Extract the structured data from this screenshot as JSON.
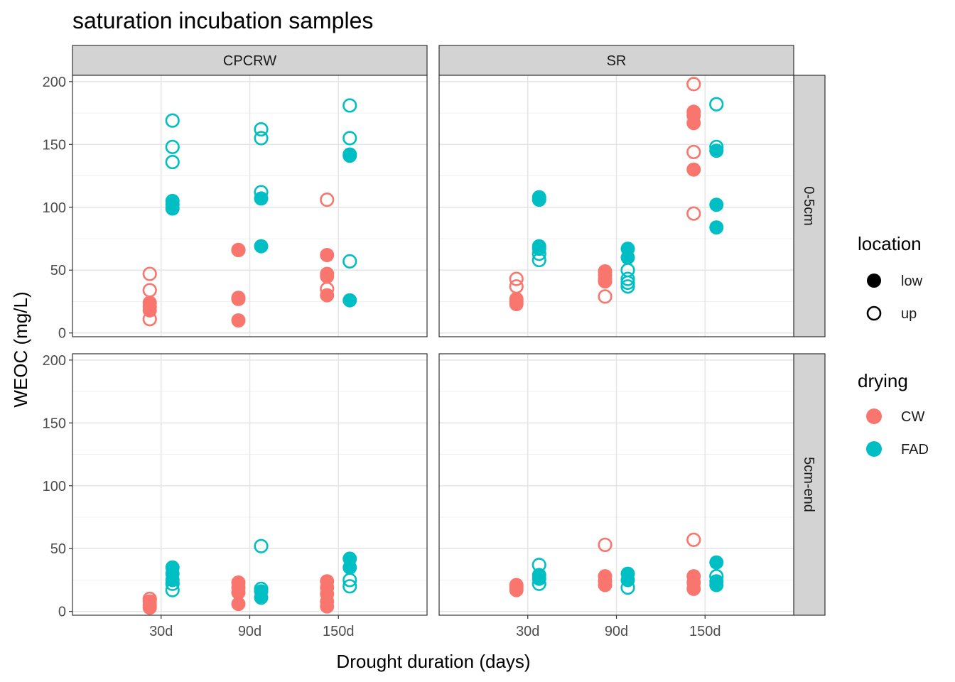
{
  "chart_data": {
    "type": "scatter",
    "title": "saturation incubation samples",
    "xlabel": "Drought duration (days)",
    "ylabel": "WEOC (mg/L)",
    "x_categories": [
      "30d",
      "90d",
      "150d"
    ],
    "ylim": [
      -3,
      205
    ],
    "y_ticks": [
      0,
      50,
      100,
      150,
      200
    ],
    "grid": true,
    "facet_cols": [
      "CPCRW",
      "SR"
    ],
    "facet_rows": [
      "0-5cm",
      "5cm-end"
    ],
    "colors": {
      "CW": "#F8766D",
      "FAD": "#00BFC4"
    },
    "legend": {
      "placement": "right",
      "location_title": "location",
      "location_items": [
        {
          "label": "low",
          "shape": "filled"
        },
        {
          "label": "up",
          "shape": "open"
        }
      ],
      "drying_title": "drying",
      "drying_items": [
        {
          "label": "CW",
          "color": "#F8766D"
        },
        {
          "label": "FAD",
          "color": "#00BFC4"
        }
      ]
    },
    "panels": [
      {
        "col": "CPCRW",
        "row": "0-5cm",
        "points": [
          {
            "x": "30d",
            "drying": "CW",
            "location": "up",
            "y": 47
          },
          {
            "x": "30d",
            "drying": "CW",
            "location": "up",
            "y": 34
          },
          {
            "x": "30d",
            "drying": "CW",
            "location": "up",
            "y": 11
          },
          {
            "x": "30d",
            "drying": "CW",
            "location": "low",
            "y": 24
          },
          {
            "x": "30d",
            "drying": "CW",
            "location": "low",
            "y": 21
          },
          {
            "x": "30d",
            "drying": "CW",
            "location": "low",
            "y": 18
          },
          {
            "x": "30d",
            "drying": "FAD",
            "location": "up",
            "y": 169
          },
          {
            "x": "30d",
            "drying": "FAD",
            "location": "up",
            "y": 148
          },
          {
            "x": "30d",
            "drying": "FAD",
            "location": "up",
            "y": 136
          },
          {
            "x": "30d",
            "drying": "FAD",
            "location": "low",
            "y": 105
          },
          {
            "x": "30d",
            "drying": "FAD",
            "location": "low",
            "y": 102
          },
          {
            "x": "30d",
            "drying": "FAD",
            "location": "low",
            "y": 99
          },
          {
            "x": "90d",
            "drying": "CW",
            "location": "up",
            "y": 66
          },
          {
            "x": "90d",
            "drying": "CW",
            "location": "low",
            "y": 66
          },
          {
            "x": "90d",
            "drying": "CW",
            "location": "low",
            "y": 28
          },
          {
            "x": "90d",
            "drying": "CW",
            "location": "low",
            "y": 27
          },
          {
            "x": "90d",
            "drying": "CW",
            "location": "low",
            "y": 10
          },
          {
            "x": "90d",
            "drying": "FAD",
            "location": "up",
            "y": 162
          },
          {
            "x": "90d",
            "drying": "FAD",
            "location": "up",
            "y": 155
          },
          {
            "x": "90d",
            "drying": "FAD",
            "location": "up",
            "y": 112
          },
          {
            "x": "90d",
            "drying": "FAD",
            "location": "low",
            "y": 107
          },
          {
            "x": "90d",
            "drying": "FAD",
            "location": "low",
            "y": 69
          },
          {
            "x": "150d",
            "drying": "CW",
            "location": "up",
            "y": 106
          },
          {
            "x": "150d",
            "drying": "CW",
            "location": "up",
            "y": 35
          },
          {
            "x": "150d",
            "drying": "CW",
            "location": "low",
            "y": 62
          },
          {
            "x": "150d",
            "drying": "CW",
            "location": "low",
            "y": 47
          },
          {
            "x": "150d",
            "drying": "CW",
            "location": "low",
            "y": 45
          },
          {
            "x": "150d",
            "drying": "CW",
            "location": "low",
            "y": 30
          },
          {
            "x": "150d",
            "drying": "FAD",
            "location": "up",
            "y": 181
          },
          {
            "x": "150d",
            "drying": "FAD",
            "location": "up",
            "y": 155
          },
          {
            "x": "150d",
            "drying": "FAD",
            "location": "up",
            "y": 57
          },
          {
            "x": "150d",
            "drying": "FAD",
            "location": "low",
            "y": 142
          },
          {
            "x": "150d",
            "drying": "FAD",
            "location": "low",
            "y": 141
          },
          {
            "x": "150d",
            "drying": "FAD",
            "location": "low",
            "y": 26
          }
        ]
      },
      {
        "col": "SR",
        "row": "0-5cm",
        "points": [
          {
            "x": "30d",
            "drying": "CW",
            "location": "up",
            "y": 43
          },
          {
            "x": "30d",
            "drying": "CW",
            "location": "up",
            "y": 37
          },
          {
            "x": "30d",
            "drying": "CW",
            "location": "low",
            "y": 27
          },
          {
            "x": "30d",
            "drying": "CW",
            "location": "low",
            "y": 25
          },
          {
            "x": "30d",
            "drying": "CW",
            "location": "low",
            "y": 23
          },
          {
            "x": "30d",
            "drying": "FAD",
            "location": "low",
            "y": 108
          },
          {
            "x": "30d",
            "drying": "FAD",
            "location": "low",
            "y": 106
          },
          {
            "x": "30d",
            "drying": "FAD",
            "location": "low",
            "y": 69
          },
          {
            "x": "30d",
            "drying": "FAD",
            "location": "low",
            "y": 67
          },
          {
            "x": "30d",
            "drying": "FAD",
            "location": "up",
            "y": 63
          },
          {
            "x": "30d",
            "drying": "FAD",
            "location": "up",
            "y": 58
          },
          {
            "x": "90d",
            "drying": "CW",
            "location": "low",
            "y": 49
          },
          {
            "x": "90d",
            "drying": "CW",
            "location": "low",
            "y": 46
          },
          {
            "x": "90d",
            "drying": "CW",
            "location": "low",
            "y": 43
          },
          {
            "x": "90d",
            "drying": "CW",
            "location": "low",
            "y": 41
          },
          {
            "x": "90d",
            "drying": "CW",
            "location": "up",
            "y": 29
          },
          {
            "x": "90d",
            "drying": "FAD",
            "location": "low",
            "y": 67
          },
          {
            "x": "90d",
            "drying": "FAD",
            "location": "low",
            "y": 60
          },
          {
            "x": "90d",
            "drying": "FAD",
            "location": "up",
            "y": 50
          },
          {
            "x": "90d",
            "drying": "FAD",
            "location": "up",
            "y": 43
          },
          {
            "x": "90d",
            "drying": "FAD",
            "location": "up",
            "y": 40
          },
          {
            "x": "90d",
            "drying": "FAD",
            "location": "up",
            "y": 37
          },
          {
            "x": "150d",
            "drying": "CW",
            "location": "up",
            "y": 198
          },
          {
            "x": "150d",
            "drying": "CW",
            "location": "up",
            "y": 144
          },
          {
            "x": "150d",
            "drying": "CW",
            "location": "up",
            "y": 95
          },
          {
            "x": "150d",
            "drying": "CW",
            "location": "low",
            "y": 176
          },
          {
            "x": "150d",
            "drying": "CW",
            "location": "low",
            "y": 173
          },
          {
            "x": "150d",
            "drying": "CW",
            "location": "low",
            "y": 167
          },
          {
            "x": "150d",
            "drying": "CW",
            "location": "low",
            "y": 130
          },
          {
            "x": "150d",
            "drying": "FAD",
            "location": "up",
            "y": 182
          },
          {
            "x": "150d",
            "drying": "FAD",
            "location": "up",
            "y": 148
          },
          {
            "x": "150d",
            "drying": "FAD",
            "location": "low",
            "y": 145
          },
          {
            "x": "150d",
            "drying": "FAD",
            "location": "low",
            "y": 102
          },
          {
            "x": "150d",
            "drying": "FAD",
            "location": "low",
            "y": 84
          }
        ]
      },
      {
        "col": "CPCRW",
        "row": "5cm-end",
        "points": [
          {
            "x": "30d",
            "drying": "CW",
            "location": "up",
            "y": 10
          },
          {
            "x": "30d",
            "drying": "CW",
            "location": "low",
            "y": 8
          },
          {
            "x": "30d",
            "drying": "CW",
            "location": "low",
            "y": 5
          },
          {
            "x": "30d",
            "drying": "CW",
            "location": "low",
            "y": 3
          },
          {
            "x": "30d",
            "drying": "FAD",
            "location": "low",
            "y": 35
          },
          {
            "x": "30d",
            "drying": "FAD",
            "location": "low",
            "y": 30
          },
          {
            "x": "30d",
            "drying": "FAD",
            "location": "low",
            "y": 25
          },
          {
            "x": "30d",
            "drying": "FAD",
            "location": "up",
            "y": 22
          },
          {
            "x": "30d",
            "drying": "FAD",
            "location": "up",
            "y": 17
          },
          {
            "x": "90d",
            "drying": "CW",
            "location": "low",
            "y": 23
          },
          {
            "x": "90d",
            "drying": "CW",
            "location": "low",
            "y": 19
          },
          {
            "x": "90d",
            "drying": "CW",
            "location": "low",
            "y": 15
          },
          {
            "x": "90d",
            "drying": "CW",
            "location": "low",
            "y": 6
          },
          {
            "x": "90d",
            "drying": "FAD",
            "location": "up",
            "y": 52
          },
          {
            "x": "90d",
            "drying": "FAD",
            "location": "up",
            "y": 18
          },
          {
            "x": "90d",
            "drying": "FAD",
            "location": "low",
            "y": 16
          },
          {
            "x": "90d",
            "drying": "FAD",
            "location": "low",
            "y": 11
          },
          {
            "x": "150d",
            "drying": "CW",
            "location": "low",
            "y": 24
          },
          {
            "x": "150d",
            "drying": "CW",
            "location": "low",
            "y": 19
          },
          {
            "x": "150d",
            "drying": "CW",
            "location": "low",
            "y": 14
          },
          {
            "x": "150d",
            "drying": "CW",
            "location": "low",
            "y": 8
          },
          {
            "x": "150d",
            "drying": "CW",
            "location": "low",
            "y": 4
          },
          {
            "x": "150d",
            "drying": "FAD",
            "location": "low",
            "y": 42
          },
          {
            "x": "150d",
            "drying": "FAD",
            "location": "low",
            "y": 35
          },
          {
            "x": "150d",
            "drying": "FAD",
            "location": "up",
            "y": 25
          },
          {
            "x": "150d",
            "drying": "FAD",
            "location": "up",
            "y": 20
          }
        ]
      },
      {
        "col": "SR",
        "row": "5cm-end",
        "points": [
          {
            "x": "30d",
            "drying": "CW",
            "location": "low",
            "y": 21
          },
          {
            "x": "30d",
            "drying": "CW",
            "location": "low",
            "y": 19
          },
          {
            "x": "30d",
            "drying": "CW",
            "location": "low",
            "y": 17
          },
          {
            "x": "30d",
            "drying": "FAD",
            "location": "up",
            "y": 37
          },
          {
            "x": "30d",
            "drying": "FAD",
            "location": "low",
            "y": 29
          },
          {
            "x": "30d",
            "drying": "FAD",
            "location": "low",
            "y": 26
          },
          {
            "x": "30d",
            "drying": "FAD",
            "location": "up",
            "y": 22
          },
          {
            "x": "90d",
            "drying": "CW",
            "location": "up",
            "y": 53
          },
          {
            "x": "90d",
            "drying": "CW",
            "location": "low",
            "y": 28
          },
          {
            "x": "90d",
            "drying": "CW",
            "location": "low",
            "y": 24
          },
          {
            "x": "90d",
            "drying": "CW",
            "location": "low",
            "y": 21
          },
          {
            "x": "90d",
            "drying": "FAD",
            "location": "low",
            "y": 30
          },
          {
            "x": "90d",
            "drying": "FAD",
            "location": "low",
            "y": 25
          },
          {
            "x": "90d",
            "drying": "FAD",
            "location": "up",
            "y": 19
          },
          {
            "x": "150d",
            "drying": "CW",
            "location": "up",
            "y": 57
          },
          {
            "x": "150d",
            "drying": "CW",
            "location": "low",
            "y": 28
          },
          {
            "x": "150d",
            "drying": "CW",
            "location": "low",
            "y": 23
          },
          {
            "x": "150d",
            "drying": "CW",
            "location": "low",
            "y": 18
          },
          {
            "x": "150d",
            "drying": "FAD",
            "location": "low",
            "y": 39
          },
          {
            "x": "150d",
            "drying": "FAD",
            "location": "up",
            "y": 28
          },
          {
            "x": "150d",
            "drying": "FAD",
            "location": "low",
            "y": 24
          },
          {
            "x": "150d",
            "drying": "FAD",
            "location": "low",
            "y": 21
          }
        ]
      }
    ]
  }
}
